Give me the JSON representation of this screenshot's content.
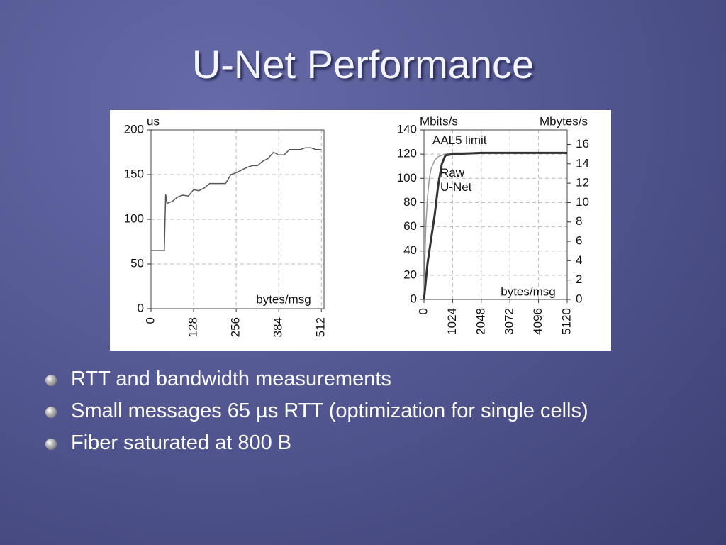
{
  "title": "U-Net Performance",
  "chart_data": [
    {
      "type": "line",
      "y_label": "us",
      "x_label": "bytes/msg",
      "x": [
        0,
        40,
        44,
        48,
        64,
        80,
        96,
        112,
        128,
        144,
        160,
        176,
        192,
        208,
        224,
        240,
        256,
        272,
        288,
        304,
        320,
        336,
        352,
        368,
        384,
        400,
        416,
        432,
        448,
        464,
        480,
        496,
        512
      ],
      "series": [
        {
          "color": "#555555",
          "values": [
            65,
            65,
            128,
            118,
            120,
            125,
            127,
            126,
            133,
            132,
            135,
            140,
            140,
            140,
            140,
            150,
            152,
            155,
            158,
            160,
            160,
            165,
            168,
            175,
            172,
            172,
            178,
            178,
            178,
            180,
            180,
            178,
            178
          ]
        }
      ],
      "xlim": [
        0,
        520
      ],
      "xticks": [
        0,
        128,
        256,
        384,
        512
      ],
      "ylim": [
        0,
        200
      ],
      "yticks": [
        0,
        50,
        100,
        150,
        200
      ],
      "grid": true
    },
    {
      "type": "line",
      "y_label": "Mbits/s",
      "y2_label": "Mbytes/s",
      "x_label": "bytes/msg",
      "x": [
        0,
        64,
        128,
        192,
        256,
        384,
        512,
        640,
        768,
        1024,
        2048,
        3072,
        4096,
        5120
      ],
      "series": [
        {
          "name": "AAL5 limit",
          "color": "#999999",
          "values": [
            0,
            60,
            85,
            100,
            108,
            115,
            118,
            119,
            120,
            121,
            121,
            121,
            121,
            121
          ]
        },
        {
          "name": "Raw U-Net",
          "color": "#333333",
          "values": [
            0,
            15,
            30,
            40,
            50,
            70,
            95,
            112,
            119,
            120,
            121,
            121,
            121,
            121
          ]
        }
      ],
      "xlim": [
        0,
        5120
      ],
      "xticks": [
        0,
        1024,
        2048,
        3072,
        4096,
        5120
      ],
      "ylim": [
        0,
        140
      ],
      "yticks": [
        0,
        20,
        40,
        60,
        80,
        100,
        120,
        140
      ],
      "y2lim": [
        0,
        17.5
      ],
      "y2ticks": [
        0,
        2,
        4,
        6,
        8,
        10,
        12,
        14,
        16
      ],
      "grid": true
    }
  ],
  "bullets": [
    "RTT and bandwidth measurements",
    "Small messages 65 µs RTT (optimization for single cells)",
    "Fiber saturated at 800 B"
  ]
}
